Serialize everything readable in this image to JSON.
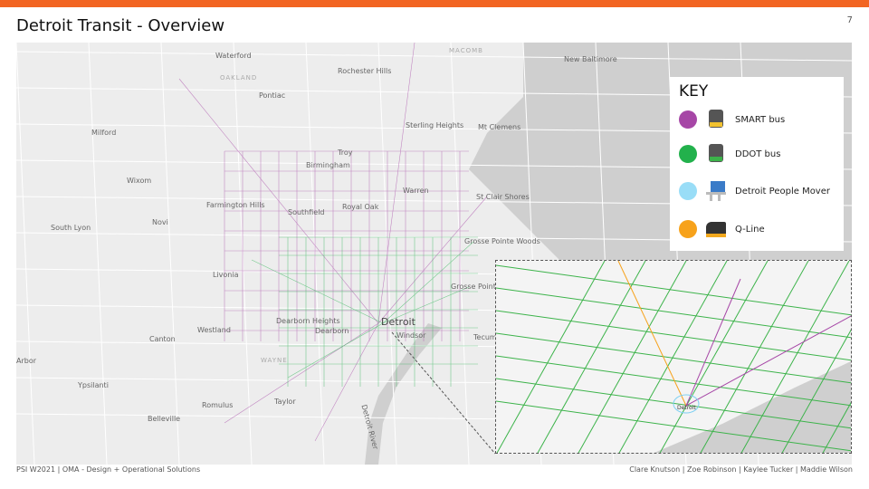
{
  "slide": {
    "title": "Detroit Transit - Overview",
    "page_number": "7",
    "accent": "#f26522"
  },
  "map": {
    "labels": [
      "Waterford",
      "OAKLAND",
      "Rochester Hills",
      "MACOMB",
      "New Baltimore",
      "Pontiac",
      "Milford",
      "Sterling Heights",
      "Mt Clemens",
      "Troy",
      "Birmingham",
      "Wixom",
      "Warren",
      "St Clair Shores",
      "Farmington Hills",
      "Southfield",
      "Royal Oak",
      "Novi",
      "South Lyon",
      "Grosse Pointe Woods",
      "Livonia",
      "Grosse Pointe Park",
      "Dearborn Heights",
      "Westland",
      "Dearborn",
      "Windsor",
      "Canton",
      "Tecum",
      "WAYNE",
      "Arbor",
      "Ypsilanti",
      "Romulus",
      "Taylor",
      "Belleville",
      "Detroit River",
      "Detroit"
    ],
    "inset_label": "Detroit"
  },
  "key": {
    "title": "KEY",
    "items": [
      {
        "label": "SMART bus",
        "color": "#a646a6",
        "icon": "bus-icon"
      },
      {
        "label": "DDOT bus",
        "color": "#22b14c",
        "icon": "bus-icon"
      },
      {
        "label": "Detroit People Mover",
        "color": "#99ddf7",
        "icon": "people-mover-icon"
      },
      {
        "label": "Q-Line",
        "color": "#f7a21b",
        "icon": "streetcar-icon"
      }
    ]
  },
  "footer": {
    "left": "PSI W2021 | OMA - Design + Operational Solutions",
    "right": "Clare Knutson | Zoe Robinson | Kaylee Tucker | Maddie Wilson"
  }
}
